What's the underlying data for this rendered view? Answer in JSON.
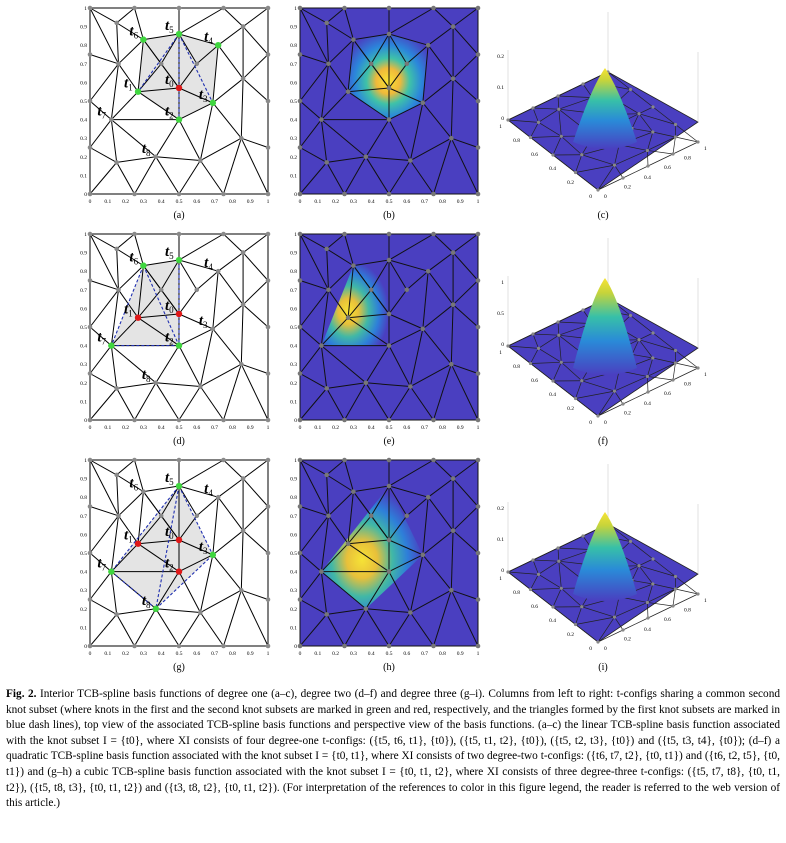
{
  "panel_labels": [
    "(a)",
    "(b)",
    "(c)",
    "(d)",
    "(e)",
    "(f)",
    "(g)",
    "(h)",
    "(i)"
  ],
  "axis_ticks": [
    "0",
    "0.1",
    "0.2",
    "0.3",
    "0.4",
    "0.5",
    "0.6",
    "0.7",
    "0.8",
    "0.9",
    "1"
  ],
  "knot_labels": {
    "row1": [
      "t6",
      "t5",
      "t4",
      "t1",
      "t0",
      "t3",
      "t7",
      "t2",
      "t8"
    ],
    "row2": [
      "t6",
      "t5",
      "t4",
      "t1",
      "t0",
      "t3",
      "t7",
      "t2",
      "t8"
    ],
    "row3": [
      "t6",
      "t5",
      "t4",
      "t1",
      "t0",
      "t3",
      "t7",
      "t2",
      "t8"
    ]
  },
  "perspective_ticks": {
    "c": {
      "z": [
        "0.2",
        "0.1",
        "0"
      ],
      "left": [
        "1",
        "0.8",
        "0.6",
        "0.4",
        "0.2",
        "0"
      ],
      "right": [
        "0",
        "0.2",
        "0.4",
        "0.6",
        "0.8",
        "1"
      ]
    },
    "f": {
      "z": [
        "1",
        "0.5",
        "0"
      ],
      "left": [
        "1",
        "0.8",
        "0.6",
        "0.4",
        "0.2",
        "0"
      ],
      "right": [
        "0",
        "0.2",
        "0.4",
        "0.6",
        "0.8",
        "1"
      ]
    },
    "i": {
      "z": [
        "0.2",
        "0.1",
        "0"
      ],
      "left": [
        "1",
        "0.8",
        "0.6",
        "0.4",
        "0.2",
        "0"
      ],
      "right": [
        "0",
        "0.2",
        "0.4",
        "0.6",
        "0.8",
        "1"
      ]
    }
  },
  "colors": {
    "mesh": "#000000",
    "gray_region": "#e4e4e4",
    "first_subset_knot": "#3fd63f",
    "second_subset_knot": "#e01818",
    "dash": "#1f2fb0",
    "surface_base": "#4a3fc0",
    "surface_peak": "#f6e336"
  },
  "caption": {
    "label": "Fig. 2.",
    "text": "Interior TCB-spline basis functions of degree one (a–c), degree two (d–f) and degree three (g–i). Columns from left to right: t-configs sharing a common second knot subset (where knots in the first and the second knot subsets are marked in green and red, respectively, and the triangles formed by the first knot subsets are marked in blue dash lines), top view of the associated TCB-spline basis functions and perspective view of the basis functions. (a–c) the linear TCB-spline basis function associated with the knot subset I = {t0}, where XI consists of four degree-one t-configs: ({t5, t6, t1}, {t0}), ({t5, t1, t2}, {t0}), ({t5, t2, t3}, {t0}) and ({t5, t3, t4}, {t0}); (d–f) a quadratic TCB-spline basis function associated with the knot subset I = {t0, t1}, where XI consists of two degree-two t-configs: ({t6, t7, t2}, {t0, t1}) and ({t6, t2, t5}, {t0, t1}) and (g–h) a cubic TCB-spline basis function associated with the knot subset I = {t0, t1, t2}, where XI consists of three degree-three t-configs: ({t5, t7, t8}, {t0, t1, t2}), ({t5, t8, t3}, {t0, t1, t2}) and ({t3, t8, t2}, {t0, t1, t2}). (For interpretation of the references to color in this figure legend, the reader is referred to the web version of this article.)"
  }
}
